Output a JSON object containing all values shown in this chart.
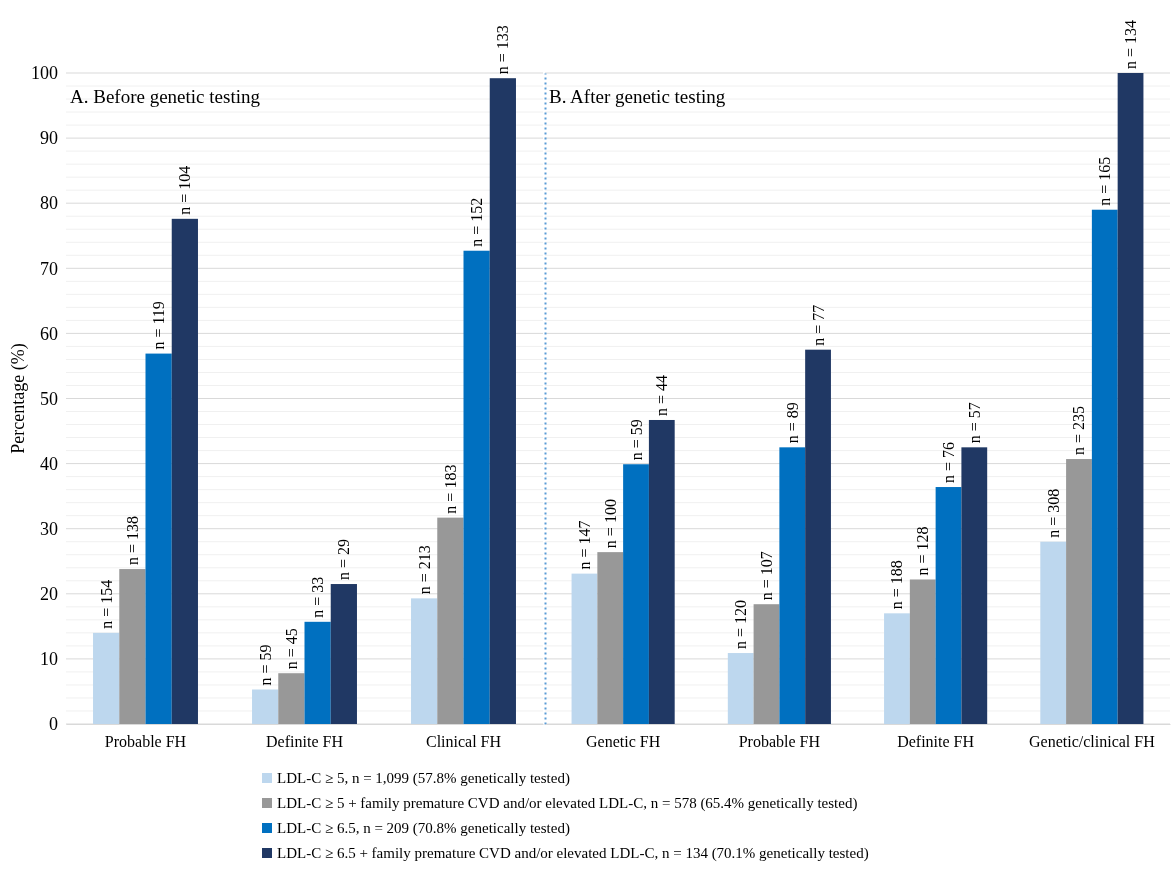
{
  "chart_data": [
    {
      "type": "bar",
      "title": "A. Before genetic testing",
      "ylabel": "Percentage  (%)",
      "categories": [
        "Probable FH",
        "Definite FH",
        "Clinical FH"
      ],
      "series": [
        {
          "name": "LDL-C ≥ 5, n = 1,099 (57.8% genetically tested)",
          "color": "#bdd7ee",
          "values": [
            14.0,
            5.3,
            19.3
          ]
        },
        {
          "name": "LDL-C ≥ 5 + family premature CVD and/or elevated LDL-C, n = 578 (65.4% genetically tested)",
          "color": "#989898",
          "values": [
            23.8,
            7.8,
            31.7
          ]
        },
        {
          "name": "LDL-C ≥ 6.5, n = 209 (70.8% genetically tested)",
          "color": "#0070c0",
          "values": [
            56.9,
            15.7,
            72.7
          ]
        },
        {
          "name": "LDL-C ≥ 6.5 + family premature CVD and/or elevated LDL-C, n = 134 (70.1% genetically tested)",
          "color": "#203864",
          "values": [
            77.6,
            21.5,
            99.2
          ]
        }
      ],
      "annotations": [
        "n = 154",
        "n = 138",
        "n = 119",
        "n = 104",
        "n = 59",
        "n = 45",
        "n = 33",
        "n = 29",
        "n = 213",
        "n = 183",
        "n = 152",
        "n = 133"
      ],
      "ylim": [
        0,
        100
      ],
      "yticks": [
        0,
        {
          "value": 2,
          "label": null
        },
        {
          "value": 4,
          "label": null
        },
        {
          "value": 6,
          "label": null
        },
        {
          "value": 8,
          "label": null
        },
        10,
        {
          "value": 12,
          "label": null
        },
        {
          "value": 14,
          "label": null
        },
        {
          "value": 16,
          "label": null
        },
        {
          "value": 18,
          "label": null
        },
        20,
        {
          "value": 22,
          "label": null
        },
        {
          "value": 24,
          "label": null
        },
        {
          "value": 26,
          "label": null
        },
        {
          "value": 28,
          "label": null
        },
        30,
        {
          "value": 32,
          "label": null
        },
        {
          "value": 34,
          "label": null
        },
        {
          "value": 36,
          "label": null
        },
        {
          "value": 38,
          "label": null
        },
        40,
        {
          "value": 42,
          "label": null
        },
        {
          "value": 44,
          "label": null
        },
        {
          "value": 46,
          "label": null
        },
        {
          "value": 48,
          "label": null
        },
        50,
        {
          "value": 52,
          "label": null
        },
        {
          "value": 54,
          "label": null
        },
        {
          "value": 56,
          "label": null
        },
        {
          "value": 58,
          "label": null
        },
        60,
        {
          "value": 62,
          "label": null
        },
        {
          "value": 64,
          "label": null
        },
        {
          "value": 66,
          "label": null
        },
        {
          "value": 68,
          "label": null
        },
        70,
        {
          "value": 72,
          "label": null
        },
        {
          "value": 74,
          "label": null
        },
        {
          "value": 76,
          "label": null
        },
        {
          "value": 78,
          "label": null
        },
        80,
        {
          "value": 82,
          "label": null
        },
        {
          "value": 84,
          "label": null
        },
        {
          "value": 86,
          "label": null
        },
        {
          "value": 88,
          "label": null
        },
        90,
        {
          "value": 92,
          "label": null
        },
        {
          "value": 94,
          "label": null
        },
        {
          "value": 96,
          "label": null
        },
        {
          "value": 98,
          "label": null
        },
        100
      ],
      "grid": "y",
      "legend": "bottom"
    },
    {
      "type": "bar",
      "title": "B. After genetic testing",
      "categories": [
        "Genetic FH",
        "Probable FH",
        "Definite FH",
        "Genetic/clinical FH"
      ],
      "series": [
        {
          "color": "#bdd7ee",
          "values": [
            23.1,
            10.9,
            17.0,
            28.0
          ]
        },
        {
          "color": "#989898",
          "values": [
            26.4,
            18.4,
            22.2,
            40.7
          ]
        },
        {
          "color": "#0070c0",
          "values": [
            39.9,
            42.5,
            36.4,
            79.0
          ]
        },
        {
          "color": "#203864",
          "values": [
            46.7,
            57.5,
            42.5,
            100
          ]
        }
      ],
      "annotations": [
        "n = 147",
        "n = 100",
        "n = 59",
        "n = 44",
        "n = 120",
        "n = 107",
        "n = 89",
        "n = 77",
        "n = 188",
        "n = 128",
        "n = 76",
        "n = 57",
        "n = 308",
        "n = 235",
        "n = 165",
        "n = 134"
      ],
      "ylim": [
        0,
        100
      ],
      "yticks": [
        0,
        {
          "value": 2,
          "label": null
        },
        {
          "value": 4,
          "label": null
        },
        {
          "value": 6,
          "label": null
        },
        {
          "value": 8,
          "label": null
        },
        10,
        {
          "value": 12,
          "label": null
        },
        {
          "value": 14,
          "label": null
        },
        {
          "value": 16,
          "label": null
        },
        {
          "value": 18,
          "label": null
        },
        20,
        {
          "value": 22,
          "label": null
        },
        {
          "value": 24,
          "label": null
        },
        {
          "value": 26,
          "label": null
        },
        {
          "value": 28,
          "label": null
        },
        30,
        {
          "value": 32,
          "label": null
        },
        {
          "value": 34,
          "label": null
        },
        {
          "value": 36,
          "label": null
        },
        {
          "value": 38,
          "label": null
        },
        40,
        {
          "value": 42,
          "label": null
        },
        {
          "value": 44,
          "label": null
        },
        {
          "value": 46,
          "label": null
        },
        {
          "value": 48,
          "label": null
        },
        50,
        {
          "value": 52,
          "label": null
        },
        {
          "value": 54,
          "label": null
        },
        {
          "value": 56,
          "label": null
        },
        {
          "value": 58,
          "label": null
        },
        60,
        {
          "value": 62,
          "label": null
        },
        {
          "value": 64,
          "label": null
        },
        {
          "value": 66,
          "label": null
        },
        {
          "value": 68,
          "label": null
        },
        70,
        {
          "value": 72,
          "label": null
        },
        {
          "value": 74,
          "label": null
        },
        {
          "value": 76,
          "label": null
        },
        {
          "value": 78,
          "label": null
        },
        80,
        {
          "value": 82,
          "label": null
        },
        {
          "value": 84,
          "label": null
        },
        {
          "value": 86,
          "label": null
        },
        {
          "value": 88,
          "label": null
        },
        90,
        {
          "value": 92,
          "label": null
        },
        {
          "value": 94,
          "label": null
        },
        {
          "value": 96,
          "label": null
        },
        {
          "value": 98,
          "label": null
        },
        100
      ],
      "grid": "y",
      "tick_labels": "x"
    }
  ]
}
